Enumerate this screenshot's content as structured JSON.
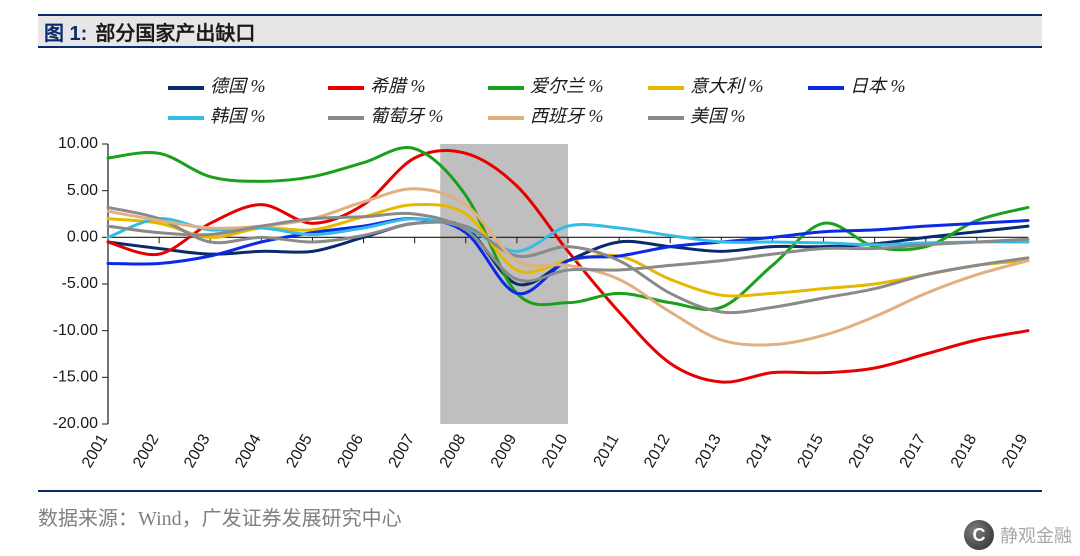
{
  "title": {
    "lead": "图 1:",
    "text": "部分国家产出缺口"
  },
  "source": "数据来源：Wind，广发证券发展研究中心",
  "watermark": "静观金融",
  "chart": {
    "type": "line",
    "years": [
      2001,
      2002,
      2003,
      2004,
      2005,
      2006,
      2007,
      2008,
      2009,
      2010,
      2011,
      2012,
      2013,
      2014,
      2015,
      2016,
      2017,
      2018,
      2019
    ],
    "ylim": [
      -20,
      10
    ],
    "ytick_step": 5,
    "yticks": [
      10.0,
      5.0,
      0.0,
      -5.0,
      -10.0,
      -15.0,
      -20.0
    ],
    "background_color": "#ffffff",
    "shaded_band": {
      "start_year": 2007.5,
      "end_year": 2010.0,
      "color": "#bfbfbf"
    },
    "axis_color": "#1a1a1a",
    "tick_font_size": 16,
    "legend_font_size": 18,
    "legend_position": "top",
    "line_width": 3,
    "legend_swatch_width": 36,
    "series": [
      {
        "name": "德国 %",
        "color": "#0a2a6b",
        "values": [
          -0.5,
          -1.2,
          -1.8,
          -1.5,
          -1.5,
          0.0,
          1.5,
          1.0,
          -5.0,
          -2.5,
          -0.5,
          -1.0,
          -1.5,
          -1.0,
          -1.0,
          -0.7,
          0.0,
          0.6,
          1.2
        ]
      },
      {
        "name": "希腊 %",
        "color": "#e60000",
        "values": [
          -0.5,
          -1.8,
          1.5,
          3.5,
          1.5,
          3.5,
          8.5,
          9.0,
          5.5,
          -1.5,
          -8.0,
          -13.5,
          -15.5,
          -14.5,
          -14.5,
          -14.0,
          -12.5,
          -11.0,
          -10.0
        ]
      },
      {
        "name": "爱尔兰 %",
        "color": "#1aa01a",
        "values": [
          8.5,
          9.0,
          6.5,
          6.0,
          6.5,
          8.0,
          9.5,
          4.5,
          -6.0,
          -7.0,
          -6.0,
          -7.0,
          -7.5,
          -3.0,
          1.5,
          -1.0,
          -1.0,
          1.8,
          3.2
        ]
      },
      {
        "name": "意大利 %",
        "color": "#e6b800",
        "values": [
          2.0,
          1.5,
          0.0,
          1.0,
          0.8,
          2.2,
          3.5,
          2.5,
          -3.5,
          -2.5,
          -2.0,
          -4.5,
          -6.2,
          -6.0,
          -5.5,
          -5.0,
          -4.0,
          -3.0,
          -2.5
        ]
      },
      {
        "name": "日本 %",
        "color": "#0a2ae6",
        "values": [
          -2.8,
          -2.8,
          -2.0,
          -0.5,
          0.5,
          1.2,
          2.0,
          0.5,
          -6.0,
          -2.5,
          -2.0,
          -1.0,
          -0.5,
          0.0,
          0.6,
          0.8,
          1.2,
          1.5,
          1.8
        ]
      },
      {
        "name": "韩国 %",
        "color": "#33bde6",
        "values": [
          0.0,
          2.0,
          0.8,
          1.0,
          0.3,
          1.0,
          2.0,
          1.0,
          -1.5,
          1.2,
          1.0,
          0.2,
          -0.5,
          -0.5,
          -0.6,
          -0.8,
          -0.6,
          -0.5,
          -0.5
        ]
      },
      {
        "name": "葡萄牙 %",
        "color": "#8a8a8a",
        "values": [
          3.2,
          2.0,
          -0.5,
          0.0,
          -0.5,
          0.2,
          1.5,
          1.2,
          -2.0,
          -1.0,
          -2.5,
          -6.0,
          -8.0,
          -7.5,
          -6.5,
          -5.5,
          -4.0,
          -3.0,
          -2.2
        ]
      },
      {
        "name": "西班牙 %",
        "color": "#e0b080",
        "values": [
          2.8,
          1.8,
          1.0,
          1.2,
          2.0,
          3.8,
          5.2,
          3.5,
          -2.5,
          -3.0,
          -4.5,
          -8.0,
          -11.0,
          -11.5,
          -10.5,
          -8.5,
          -6.0,
          -4.0,
          -2.5
        ]
      },
      {
        "name": "美国 %",
        "color": "#8a8a8a",
        "values": [
          1.2,
          0.5,
          0.3,
          1.2,
          2.0,
          2.2,
          2.5,
          0.8,
          -4.5,
          -3.5,
          -3.5,
          -3.0,
          -2.5,
          -1.8,
          -1.2,
          -1.2,
          -0.8,
          -0.5,
          -0.2
        ]
      }
    ]
  }
}
